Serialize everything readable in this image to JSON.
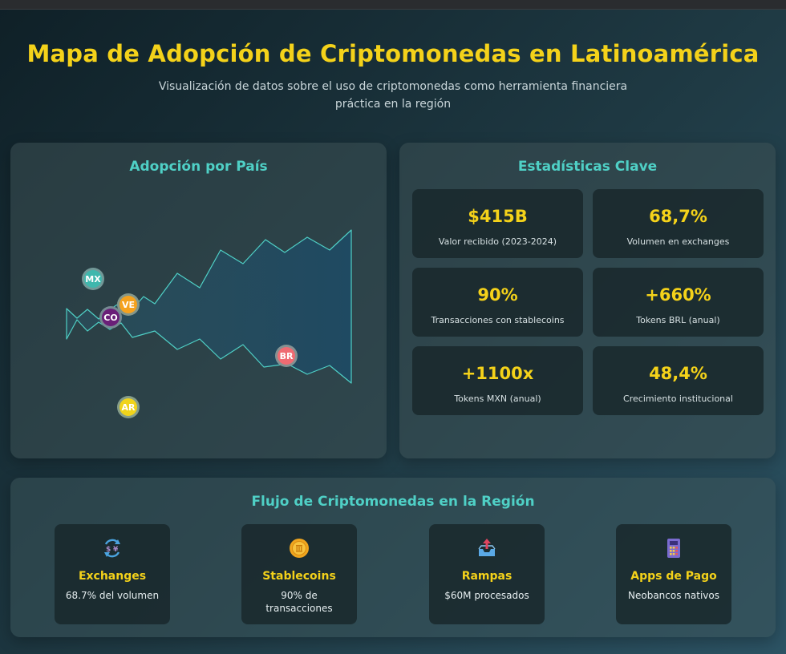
{
  "header": {
    "title": "Mapa de Adopción de Criptomonedas en Latinoamérica",
    "subtitle": "Visualización de datos sobre el uso de criptomonedas como herramienta financiera práctica en la región"
  },
  "map": {
    "title": "Adopción por País",
    "countries": [
      {
        "code": "MX",
        "color": "#3fb7ad"
      },
      {
        "code": "VE",
        "color": "#f5a21e"
      },
      {
        "code": "CO",
        "color": "#6a1f78"
      },
      {
        "code": "BR",
        "color": "#ef6b72"
      },
      {
        "code": "AR",
        "color": "#f0d41a"
      }
    ]
  },
  "stats": {
    "title": "Estadísticas Clave",
    "items": [
      {
        "value": "$415B",
        "label": "Valor recibido (2023-2024)"
      },
      {
        "value": "68,7%",
        "label": "Volumen en exchanges"
      },
      {
        "value": "90%",
        "label": "Transacciones con stablecoins"
      },
      {
        "value": "+660%",
        "label": "Tokens BRL (anual)"
      },
      {
        "value": "+1100x",
        "label": "Tokens MXN (anual)"
      },
      {
        "value": "48,4%",
        "label": "Crecimiento institucional"
      }
    ]
  },
  "flow": {
    "title": "Flujo de Criptomonedas en la Región",
    "items": [
      {
        "name": "Exchanges",
        "desc": "68.7% del volumen",
        "icon": "currency-exchange-icon"
      },
      {
        "name": "Stablecoins",
        "desc": "90% de transacciones",
        "icon": "coin-icon"
      },
      {
        "name": "Rampas",
        "desc": "$60M procesados",
        "icon": "outbox-tray-icon"
      },
      {
        "name": "Apps de Pago",
        "desc": "Neobancos nativos",
        "icon": "calculator-icon"
      }
    ]
  },
  "colors": {
    "accent_yellow": "#f4d21a",
    "accent_teal": "#4fd0c6"
  }
}
